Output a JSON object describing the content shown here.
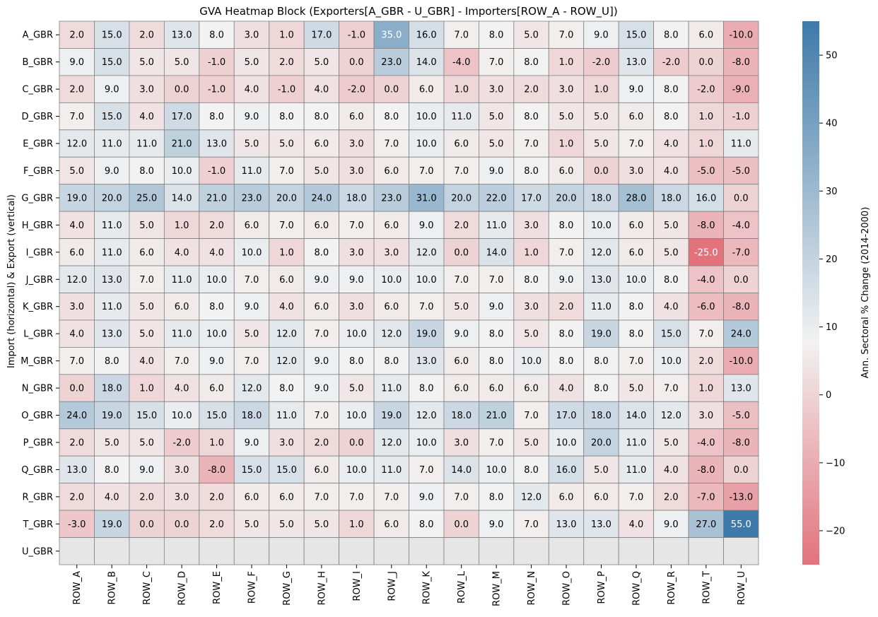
{
  "chart_data": {
    "type": "heatmap",
    "title": "GVA Heatmap Block (Exporters[A_GBR - U_GBR] - Importers[ROW_A - ROW_U])",
    "xlabel": "",
    "ylabel": "Import (horizontal) & Export (vertical)",
    "colorbar_label": "Ann. Sectoral % Change (2014-2000)",
    "columns": [
      "ROW_A",
      "ROW_B",
      "ROW_C",
      "ROW_D",
      "ROW_E",
      "ROW_F",
      "ROW_G",
      "ROW_H",
      "ROW_I",
      "ROW_J",
      "ROW_K",
      "ROW_L",
      "ROW_M",
      "ROW_N",
      "ROW_O",
      "ROW_P",
      "ROW_Q",
      "ROW_R",
      "ROW_T",
      "ROW_U"
    ],
    "rows": [
      "A_GBR",
      "B_GBR",
      "C_GBR",
      "D_GBR",
      "E_GBR",
      "F_GBR",
      "G_GBR",
      "H_GBR",
      "I_GBR",
      "J_GBR",
      "K_GBR",
      "L_GBR",
      "M_GBR",
      "N_GBR",
      "O_GBR",
      "P_GBR",
      "Q_GBR",
      "R_GBR",
      "T_GBR",
      "U_GBR"
    ],
    "values": [
      [
        2,
        15,
        2,
        13,
        8,
        3,
        1,
        17,
        -1,
        35,
        16,
        7,
        8,
        5,
        7,
        9,
        15,
        8,
        6,
        -10
      ],
      [
        9,
        15,
        5,
        5,
        -1,
        5,
        2,
        5,
        0,
        23,
        14,
        -4,
        7,
        8,
        1,
        -2,
        13,
        -2,
        0,
        -8
      ],
      [
        2,
        9,
        3,
        0,
        -1,
        4,
        -1,
        4,
        -2,
        0,
        6,
        1,
        3,
        2,
        3,
        1,
        9,
        8,
        -2,
        -9
      ],
      [
        7,
        15,
        4,
        17,
        8,
        9,
        8,
        8,
        6,
        8,
        10,
        11,
        5,
        8,
        5,
        5,
        6,
        8,
        1,
        -1
      ],
      [
        12,
        11,
        11,
        21,
        13,
        5,
        5,
        6,
        3,
        7,
        10,
        6,
        5,
        7,
        1,
        5,
        7,
        4,
        1,
        11
      ],
      [
        5,
        9,
        8,
        10,
        -1,
        11,
        7,
        5,
        3,
        6,
        7,
        7,
        9,
        8,
        6,
        0,
        3,
        4,
        -5,
        -5
      ],
      [
        19,
        20,
        25,
        14,
        21,
        23,
        20,
        24,
        18,
        23,
        31,
        20,
        22,
        17,
        20,
        18,
        28,
        18,
        16,
        0
      ],
      [
        4,
        11,
        5,
        1,
        2,
        6,
        7,
        6,
        7,
        6,
        9,
        2,
        11,
        3,
        8,
        10,
        6,
        5,
        -8,
        -4
      ],
      [
        6,
        11,
        6,
        4,
        4,
        10,
        1,
        8,
        3,
        3,
        12,
        0,
        14,
        1,
        7,
        12,
        6,
        5,
        -25,
        -7
      ],
      [
        12,
        13,
        7,
        11,
        10,
        7,
        6,
        9,
        9,
        10,
        10,
        7,
        7,
        8,
        9,
        13,
        10,
        8,
        -4,
        0
      ],
      [
        3,
        11,
        5,
        6,
        8,
        9,
        4,
        6,
        3,
        6,
        7,
        5,
        9,
        3,
        2,
        11,
        8,
        4,
        -6,
        -8
      ],
      [
        4,
        13,
        5,
        11,
        10,
        5,
        12,
        7,
        10,
        12,
        19,
        9,
        8,
        5,
        8,
        19,
        8,
        15,
        7,
        24
      ],
      [
        7,
        8,
        4,
        7,
        9,
        7,
        12,
        9,
        8,
        8,
        13,
        6,
        8,
        10,
        8,
        8,
        7,
        10,
        2,
        -10
      ],
      [
        0,
        18,
        1,
        4,
        6,
        12,
        8,
        9,
        5,
        11,
        8,
        6,
        6,
        6,
        4,
        8,
        5,
        7,
        1,
        13
      ],
      [
        24,
        19,
        15,
        10,
        15,
        18,
        11,
        7,
        10,
        19,
        12,
        18,
        21,
        7,
        17,
        18,
        14,
        12,
        3,
        -5
      ],
      [
        2,
        5,
        5,
        -2,
        1,
        9,
        3,
        2,
        0,
        12,
        10,
        3,
        7,
        5,
        10,
        20,
        11,
        5,
        -4,
        -8
      ],
      [
        13,
        8,
        9,
        3,
        -8,
        15,
        15,
        6,
        10,
        11,
        7,
        14,
        10,
        8,
        16,
        5,
        11,
        4,
        -8,
        0
      ],
      [
        2,
        4,
        2,
        3,
        2,
        6,
        6,
        7,
        7,
        7,
        9,
        7,
        8,
        12,
        6,
        6,
        7,
        2,
        -7,
        -13
      ],
      [
        -3,
        19,
        0,
        0,
        2,
        5,
        5,
        5,
        1,
        6,
        8,
        0,
        9,
        7,
        13,
        13,
        4,
        9,
        27,
        55
      ],
      [
        null,
        null,
        null,
        null,
        null,
        null,
        null,
        null,
        null,
        null,
        null,
        null,
        null,
        null,
        null,
        null,
        null,
        null,
        null,
        null
      ]
    ],
    "value_format": "one decimal",
    "color_range": [
      -25,
      55
    ],
    "color_center": 8,
    "colorbar_ticks": [
      -20,
      -10,
      0,
      10,
      20,
      30,
      40,
      50
    ],
    "colors": {
      "low": "#e3727b",
      "mid": "#f2f2f2",
      "high": "#3d7aaa",
      "missing": "#e6e6e6",
      "gridline": "#808080"
    },
    "legend": "colorbar right"
  }
}
